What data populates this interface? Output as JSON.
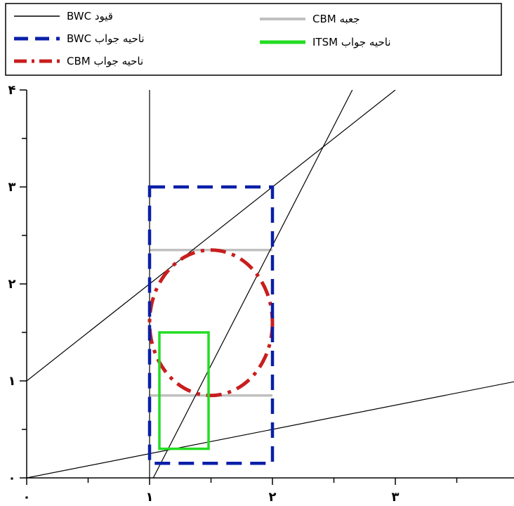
{
  "chart_data": {
    "type": "line",
    "title": "",
    "xlabel": "",
    "ylabel": "",
    "xlim": [
      0,
      4
    ],
    "ylim": [
      0,
      4
    ],
    "x_ticks": [
      {
        "value": 0,
        "label": "۰"
      },
      {
        "value": 1,
        "label": "۱"
      },
      {
        "value": 2,
        "label": "۲"
      },
      {
        "value": 3,
        "label": "۳"
      }
    ],
    "y_ticks": [
      {
        "value": 0,
        "label": "۰"
      },
      {
        "value": 1,
        "label": "۱"
      },
      {
        "value": 2,
        "label": "۲"
      },
      {
        "value": 3,
        "label": "۳"
      },
      {
        "value": 4,
        "label": "۴"
      }
    ],
    "legend": {
      "position": "top",
      "entries": [
        {
          "key": "constraints",
          "label": "قیود BWC",
          "color": "#000000",
          "style": "solid-thin"
        },
        {
          "key": "cbm_box",
          "label": "جعبه CBM",
          "color": "#c0c0c0",
          "style": "solid-thick"
        },
        {
          "key": "bwc_region",
          "label": "ناحیه جواب BWC",
          "color": "#0a1fa8",
          "style": "dashed"
        },
        {
          "key": "itsm_region",
          "label": "ناحیه جواب ITSM",
          "color": "#22dd22",
          "style": "solid-thick"
        },
        {
          "key": "cbm_region",
          "label": "ناحیه جواب CBM",
          "color": "#c81e1e",
          "style": "dashdot"
        }
      ]
    },
    "series": [
      {
        "key": "constraints",
        "kind": "line",
        "points": [
          [
            1,
            0
          ],
          [
            1,
            4
          ]
        ]
      },
      {
        "key": "constraints",
        "kind": "line",
        "points": [
          [
            0,
            1
          ],
          [
            3,
            4
          ]
        ]
      },
      {
        "key": "constraints",
        "kind": "line",
        "points": [
          [
            1.03,
            0
          ],
          [
            2.65,
            4
          ]
        ]
      },
      {
        "key": "constraints",
        "kind": "line",
        "points": [
          [
            0,
            0
          ],
          [
            4,
            1
          ]
        ]
      },
      {
        "key": "cbm_box",
        "kind": "hline",
        "y": 2.35,
        "x": [
          1,
          2
        ]
      },
      {
        "key": "cbm_box",
        "kind": "hline",
        "y": 0.85,
        "x": [
          1,
          2
        ]
      },
      {
        "key": "bwc_region",
        "kind": "rect",
        "x": [
          1,
          2
        ],
        "y": [
          0.15,
          3
        ]
      },
      {
        "key": "itsm_region",
        "kind": "rect",
        "x": [
          1.08,
          1.48
        ],
        "y": [
          0.3,
          1.5
        ]
      },
      {
        "key": "cbm_region",
        "kind": "ellipse",
        "cx": 1.5,
        "cy": 1.6,
        "rx": 0.5,
        "ry": 0.75
      }
    ]
  }
}
